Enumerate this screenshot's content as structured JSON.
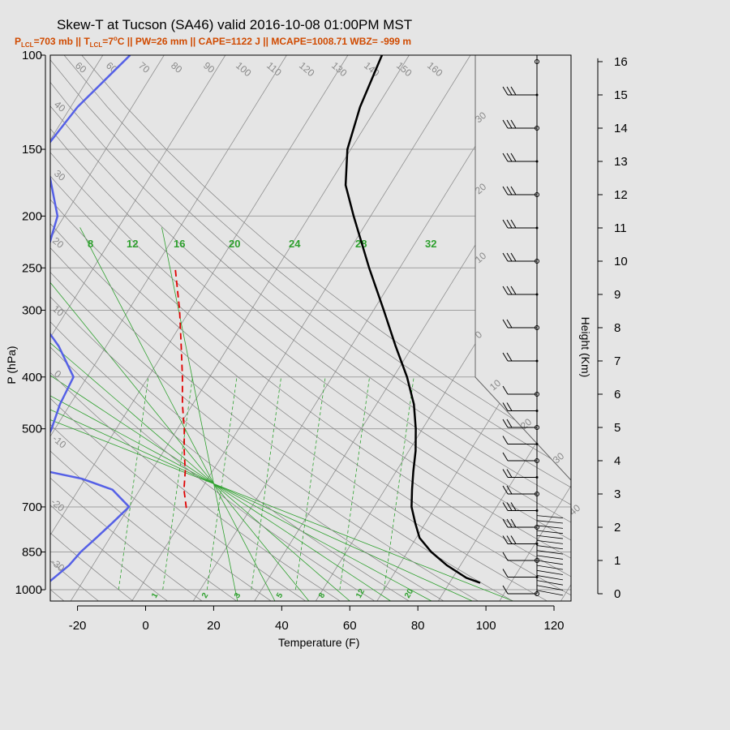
{
  "chart_data": {
    "type": "skew-t",
    "title": "Skew-T at Tucson (SA46) valid 2016-10-08 01:00PM MST",
    "subtitle_parts": {
      "p": "P",
      "lcl1": "LCL",
      "eq1": "=703 mb || T",
      "lcl2": "LCL",
      "eq2": "=7",
      "deg": "o",
      "rest": "C || PW=26 mm || CAPE=1122 J || MCAPE=1008.71 WBZ= -999 m"
    },
    "xlabel": "Temperature (F)",
    "ylabel": "P (hPa)",
    "y2label": "Height (Km)",
    "x_ticks": [
      "-20",
      "0",
      "20",
      "40",
      "60",
      "80",
      "100",
      "120"
    ],
    "x_tick_values": [
      -20,
      0,
      20,
      40,
      60,
      80,
      100,
      120
    ],
    "p_ticks": [
      "100",
      "150",
      "200",
      "250",
      "300",
      "400",
      "500",
      "700",
      "850",
      "1000"
    ],
    "p_tick_values": [
      100,
      150,
      200,
      250,
      300,
      400,
      500,
      700,
      850,
      1000
    ],
    "height_ticks": [
      "0",
      "1",
      "2",
      "3",
      "4",
      "5",
      "6",
      "7",
      "8",
      "9",
      "10",
      "11",
      "12",
      "13",
      "14",
      "15",
      "16"
    ],
    "xlim": [
      -28,
      125
    ],
    "plim": [
      1050,
      100
    ],
    "skew_labels": [
      "-30",
      "-20",
      "-10",
      "0",
      "10",
      "20",
      "30",
      "40",
      "50",
      "60",
      "70",
      "80",
      "90",
      "100",
      "110",
      "120",
      "130",
      "140",
      "150",
      "160"
    ],
    "mixing_labels_top": [
      "8",
      "12",
      "16",
      "20",
      "24",
      "28",
      "32"
    ],
    "mixing_labels_bottom": [
      "1",
      "2",
      "3",
      "5",
      "8",
      "12",
      "20"
    ],
    "temperature_F": {
      "p": [
        971,
        950,
        900,
        850,
        800,
        750,
        700,
        650,
        600,
        550,
        500,
        450,
        400,
        350,
        300,
        250,
        200,
        175,
        150,
        125,
        100
      ],
      "value": [
        95,
        90,
        82,
        75,
        69,
        65,
        61,
        58,
        55,
        52,
        48,
        43,
        36,
        27,
        17,
        5,
        -9,
        -17,
        -23,
        -27,
        -30
      ]
    },
    "dewpoint_F": {
      "p": [
        971,
        900,
        850,
        800,
        750,
        700,
        650,
        620,
        600,
        590,
        570,
        550,
        500,
        450,
        400,
        350,
        300,
        280,
        250,
        200,
        150,
        125,
        100
      ],
      "value": [
        -32,
        -29,
        -28,
        -26,
        -24,
        -22,
        -30,
        -41,
        -53,
        -58,
        -61,
        -58,
        -59,
        -61,
        -62,
        -72,
        -86,
        -88,
        -91,
        -96,
        -112,
        -110,
        -104
      ]
    },
    "parcel_F": {
      "p": [
        703,
        650,
        600,
        550,
        500,
        450,
        400,
        350,
        300,
        250
      ],
      "value": [
        -5,
        -9,
        -12,
        -16,
        -20,
        -25,
        -30,
        -36,
        -43,
        -52
      ]
    },
    "wind_levels_km": [
      0,
      0.5,
      1,
      1.5,
      2,
      2.5,
      3,
      3.5,
      4,
      4.5,
      5,
      5.5,
      6,
      7,
      8,
      9,
      10,
      11,
      12,
      13,
      14,
      15,
      16
    ],
    "wind_speeds_kt": [
      5,
      5,
      10,
      25,
      30,
      30,
      20,
      15,
      10,
      10,
      15,
      15,
      10,
      15,
      20,
      25,
      25,
      30,
      30,
      30,
      30,
      30,
      0
    ]
  }
}
